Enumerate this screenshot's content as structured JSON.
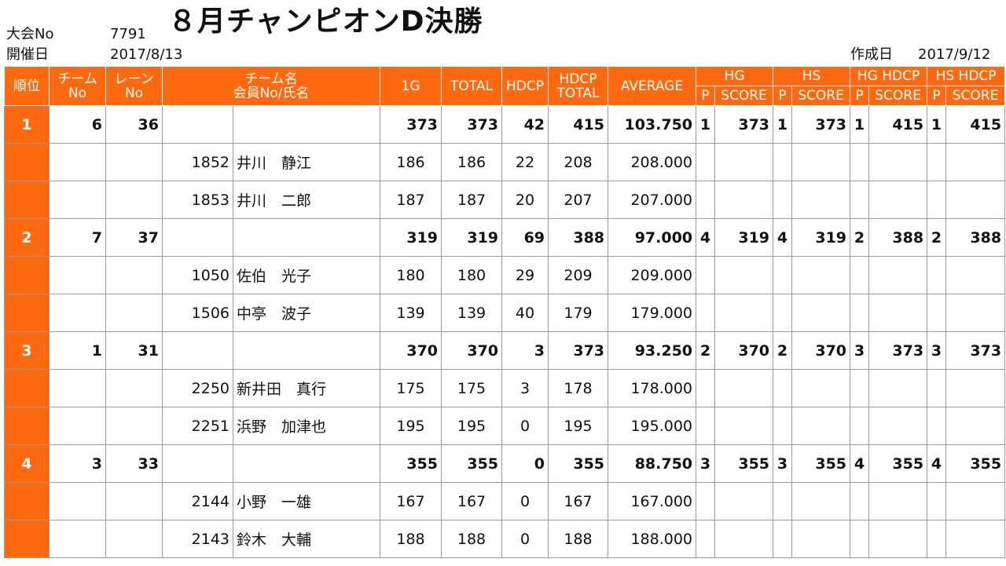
{
  "header": {
    "event_label": "大会No",
    "event_no": "7791",
    "date_label": "開催日",
    "date": "2017/8/13",
    "title": "８月チャンピオンD決勝",
    "created_label": "作成日",
    "created_date": "2017/9/12"
  },
  "columns": {
    "rank": "順位",
    "team_no": [
      "チーム",
      "No"
    ],
    "lane_no": [
      "レーン",
      "No"
    ],
    "team_name": [
      "チーム名",
      "会員No/氏名"
    ],
    "g1": "1G",
    "total": "TOTAL",
    "hdcp": "HDCP",
    "hdcp_total": [
      "HDCP",
      "TOTAL"
    ],
    "average": "AVERAGE",
    "hg": "HG",
    "hs": "HS",
    "hg_hdcp": "HG HDCP",
    "hs_hdcp": "HS HDCP",
    "p": "P",
    "score": "SCORE"
  },
  "teams": [
    {
      "rank": "1",
      "team_no": "6",
      "lane_no": "36",
      "g1": "373",
      "total": "373",
      "hdcp": "42",
      "hdcp_total": "415",
      "average": "103.750",
      "hg_p": "1",
      "hg_score": "373",
      "hs_p": "1",
      "hs_score": "373",
      "hgh_p": "1",
      "hgh_score": "415",
      "hsh_p": "1",
      "hsh_score": "415",
      "members": [
        {
          "no": "1852",
          "name": "井川　静江",
          "g1": "186",
          "total": "186",
          "hdcp": "22",
          "hdcp_total": "208",
          "average": "208.000"
        },
        {
          "no": "1853",
          "name": "井川　二郎",
          "g1": "187",
          "total": "187",
          "hdcp": "20",
          "hdcp_total": "207",
          "average": "207.000"
        }
      ]
    },
    {
      "rank": "2",
      "team_no": "7",
      "lane_no": "37",
      "g1": "319",
      "total": "319",
      "hdcp": "69",
      "hdcp_total": "388",
      "average": "97.000",
      "hg_p": "4",
      "hg_score": "319",
      "hs_p": "4",
      "hs_score": "319",
      "hgh_p": "2",
      "hgh_score": "388",
      "hsh_p": "2",
      "hsh_score": "388",
      "members": [
        {
          "no": "1050",
          "name": "佐伯　光子",
          "g1": "180",
          "total": "180",
          "hdcp": "29",
          "hdcp_total": "209",
          "average": "209.000"
        },
        {
          "no": "1506",
          "name": "中亭　波子",
          "g1": "139",
          "total": "139",
          "hdcp": "40",
          "hdcp_total": "179",
          "average": "179.000"
        }
      ]
    },
    {
      "rank": "3",
      "team_no": "1",
      "lane_no": "31",
      "g1": "370",
      "total": "370",
      "hdcp": "3",
      "hdcp_total": "373",
      "average": "93.250",
      "hg_p": "2",
      "hg_score": "370",
      "hs_p": "2",
      "hs_score": "370",
      "hgh_p": "3",
      "hgh_score": "373",
      "hsh_p": "3",
      "hsh_score": "373",
      "members": [
        {
          "no": "2250",
          "name": "新井田　真行",
          "g1": "175",
          "total": "175",
          "hdcp": "3",
          "hdcp_total": "178",
          "average": "178.000"
        },
        {
          "no": "2251",
          "name": "浜野　加津也",
          "g1": "195",
          "total": "195",
          "hdcp": "0",
          "hdcp_total": "195",
          "average": "195.000"
        }
      ]
    },
    {
      "rank": "4",
      "team_no": "3",
      "lane_no": "33",
      "g1": "355",
      "total": "355",
      "hdcp": "0",
      "hdcp_total": "355",
      "average": "88.750",
      "hg_p": "3",
      "hg_score": "355",
      "hs_p": "3",
      "hs_score": "355",
      "hgh_p": "4",
      "hgh_score": "355",
      "hsh_p": "4",
      "hsh_score": "355",
      "members": [
        {
          "no": "2144",
          "name": "小野　一雄",
          "g1": "167",
          "total": "167",
          "hdcp": "0",
          "hdcp_total": "167",
          "average": "167.000"
        },
        {
          "no": "2143",
          "name": "鈴木　大輔",
          "g1": "188",
          "total": "188",
          "hdcp": "0",
          "hdcp_total": "188",
          "average": "188.000"
        }
      ]
    }
  ],
  "colors": {
    "header_bg": "#ff6a10",
    "header_text": "#ffffff",
    "grid": "#9a9a9a"
  }
}
